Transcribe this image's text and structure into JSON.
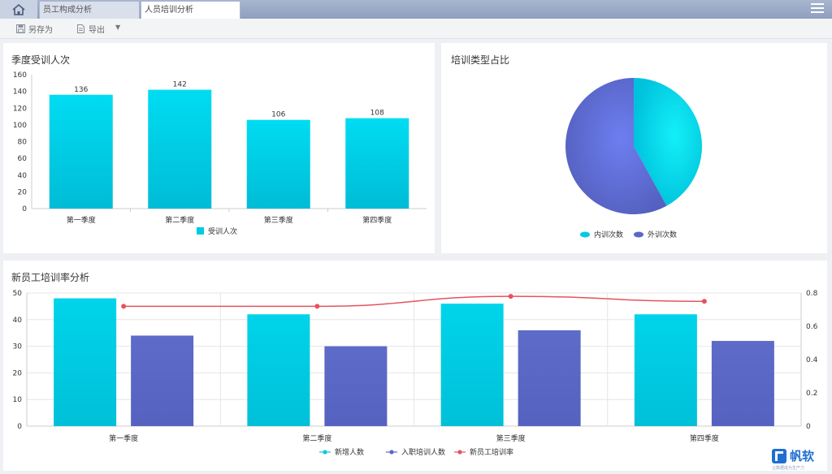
{
  "tabs": [
    {
      "label": "员工构成分析"
    },
    {
      "label": "人员培训分析"
    }
  ],
  "toolbar": {
    "save_label": "另存为",
    "export_label": "导出"
  },
  "panels": {
    "quarterly": {
      "title": "季度受训人次"
    },
    "type": {
      "title": "培训类型占比"
    },
    "newhire": {
      "title": "新员工培训率分析"
    }
  },
  "colors": {
    "cyan": "#00cbe0",
    "indigo": "#5b67c4",
    "red": "#e5535f"
  },
  "chart_data": [
    {
      "type": "bar",
      "title": "季度受训人次",
      "categories": [
        "第一季度",
        "第二季度",
        "第三季度",
        "第四季度"
      ],
      "series": [
        {
          "name": "受训人次",
          "values": [
            136,
            142,
            106,
            108
          ]
        }
      ],
      "ylim": [
        0,
        160
      ],
      "yticks": [
        0,
        20,
        40,
        60,
        80,
        100,
        120,
        140,
        160
      ],
      "legend": "bottom"
    },
    {
      "type": "pie",
      "title": "培训类型占比",
      "slices": [
        {
          "name": "内训次数",
          "value": 42,
          "color": "#00cbe0"
        },
        {
          "name": "外训次数",
          "value": 58,
          "color": "#5b67c4"
        }
      ],
      "legend": "bottom"
    },
    {
      "type": "bar",
      "title": "新员工培训率分析",
      "categories": [
        "第一季度",
        "第二季度",
        "第三季度",
        "第四季度"
      ],
      "series": [
        {
          "name": "新增人数",
          "values": [
            48,
            42,
            46,
            42
          ],
          "axis": "left"
        },
        {
          "name": "入职培训人数",
          "values": [
            34,
            30,
            36,
            32
          ],
          "axis": "left"
        },
        {
          "name": "新员工培训率",
          "type": "line",
          "values": [
            0.72,
            0.72,
            0.78,
            0.75
          ],
          "axis": "right"
        }
      ],
      "ylim": [
        0,
        50
      ],
      "yticks": [
        0,
        10,
        20,
        30,
        40,
        50
      ],
      "y2lim": [
        0,
        0.8
      ],
      "y2ticks": [
        0,
        0.2,
        0.4,
        0.6,
        0.8
      ],
      "legend": "bottom"
    }
  ],
  "logo": {
    "text": "帆软",
    "sub": "让数据成为生产力"
  }
}
